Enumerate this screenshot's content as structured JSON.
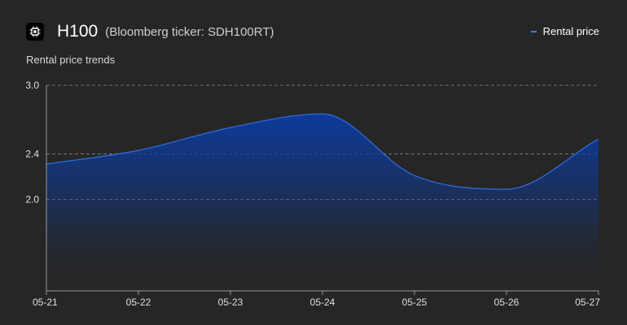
{
  "header": {
    "title": "H100",
    "subtitle": "(Bloomberg ticker: SDH100RT)",
    "logo_icon": "chip-icon"
  },
  "legend": {
    "label": "Rental price",
    "color": "#3b7bff"
  },
  "chart_title": "Rental price trends",
  "chart_data": {
    "type": "area",
    "title": "Rental price trends",
    "categories": [
      "05-21",
      "05-22",
      "05-23",
      "05-24",
      "05-25",
      "05-26",
      "05-27"
    ],
    "series": [
      {
        "name": "Rental price",
        "values": [
          2.31,
          2.43,
          2.63,
          2.75,
          2.21,
          2.09,
          2.53
        ]
      }
    ],
    "yticks": [
      2.0,
      2.4,
      3.0
    ],
    "ylim": [
      1.2,
      3.0
    ],
    "grid": true,
    "legend": "top-right",
    "colors": {
      "line": "#2f6fe0",
      "fill_top": "#0d3a9a",
      "fill_bottom": "#262626",
      "grid": "#8a8a8a",
      "axis": "#9a9a9a"
    }
  }
}
